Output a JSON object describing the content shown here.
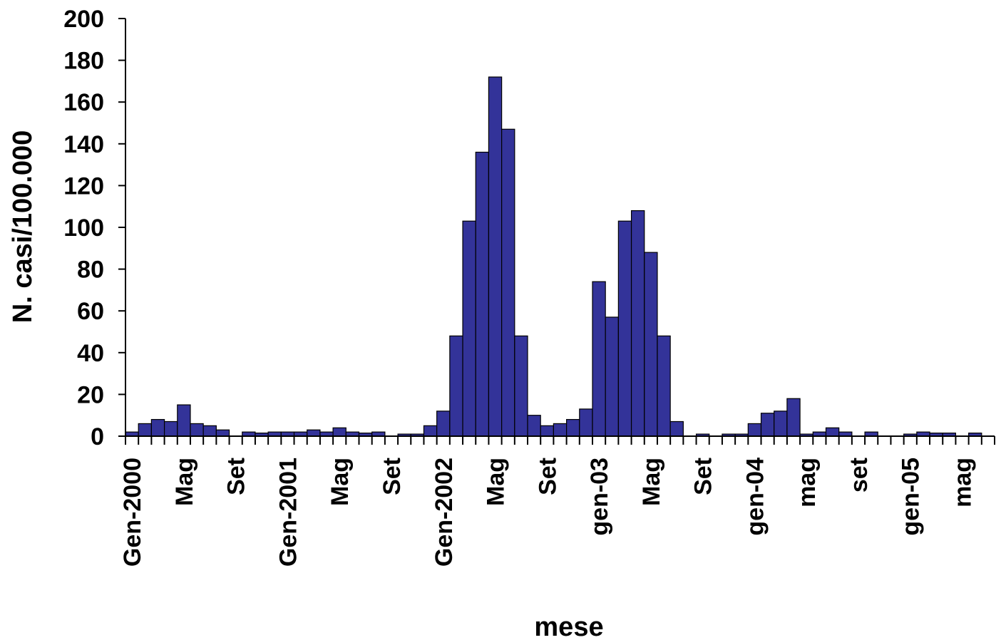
{
  "chart_data": {
    "type": "bar",
    "title": "",
    "xlabel": "mese",
    "ylabel": "N. casi/100.000",
    "ylim": [
      0,
      200
    ],
    "yticks": [
      0,
      20,
      40,
      60,
      80,
      100,
      120,
      140,
      160,
      180,
      200
    ],
    "grid": false,
    "legend": "none",
    "bar_color": "#333399",
    "bar_edge_color": "#000000",
    "categories": [
      "2000-01",
      "2000-02",
      "2000-03",
      "2000-04",
      "2000-05",
      "2000-06",
      "2000-07",
      "2000-08",
      "2000-09",
      "2000-10",
      "2000-11",
      "2000-12",
      "2001-01",
      "2001-02",
      "2001-03",
      "2001-04",
      "2001-05",
      "2001-06",
      "2001-07",
      "2001-08",
      "2001-09",
      "2001-10",
      "2001-11",
      "2001-12",
      "2002-01",
      "2002-02",
      "2002-03",
      "2002-04",
      "2002-05",
      "2002-06",
      "2002-07",
      "2002-08",
      "2002-09",
      "2002-10",
      "2002-11",
      "2002-12",
      "2003-01",
      "2003-02",
      "2003-03",
      "2003-04",
      "2003-05",
      "2003-06",
      "2003-07",
      "2003-08",
      "2003-09",
      "2003-10",
      "2003-11",
      "2003-12",
      "2004-01",
      "2004-02",
      "2004-03",
      "2004-04",
      "2004-05",
      "2004-06",
      "2004-07",
      "2004-08",
      "2004-09",
      "2004-10",
      "2004-11",
      "2004-12",
      "2005-01",
      "2005-02",
      "2005-03",
      "2005-04",
      "2005-05",
      "2005-06",
      "2005-07"
    ],
    "values": [
      2,
      6,
      8,
      7,
      15,
      6,
      5,
      3,
      0,
      2,
      1.5,
      2,
      2,
      2,
      3,
      2,
      4,
      2,
      1.5,
      2,
      0,
      1,
      1,
      5,
      12,
      48,
      103,
      136,
      172,
      147,
      48,
      10,
      5,
      6,
      8,
      13,
      74,
      57,
      103,
      108,
      88,
      48,
      7,
      0,
      1,
      0,
      1,
      1,
      6,
      11,
      12,
      18,
      1,
      2,
      4,
      2,
      0,
      2,
      0,
      0,
      1,
      2,
      1.5,
      1.5,
      0,
      1.5,
      0
    ],
    "x_tick_labels": [
      {
        "index": 0,
        "label": "Gen-2000"
      },
      {
        "index": 4,
        "label": "Mag"
      },
      {
        "index": 8,
        "label": "Set"
      },
      {
        "index": 12,
        "label": "Gen-2001"
      },
      {
        "index": 16,
        "label": "Mag"
      },
      {
        "index": 20,
        "label": "Set"
      },
      {
        "index": 24,
        "label": "Gen-2002"
      },
      {
        "index": 28,
        "label": "Mag"
      },
      {
        "index": 32,
        "label": "Set"
      },
      {
        "index": 36,
        "label": "gen-03"
      },
      {
        "index": 40,
        "label": "Mag"
      },
      {
        "index": 44,
        "label": "Set"
      },
      {
        "index": 48,
        "label": "gen-04"
      },
      {
        "index": 52,
        "label": "mag"
      },
      {
        "index": 56,
        "label": "set"
      },
      {
        "index": 60,
        "label": "gen-05"
      },
      {
        "index": 64,
        "label": "mag"
      }
    ]
  }
}
